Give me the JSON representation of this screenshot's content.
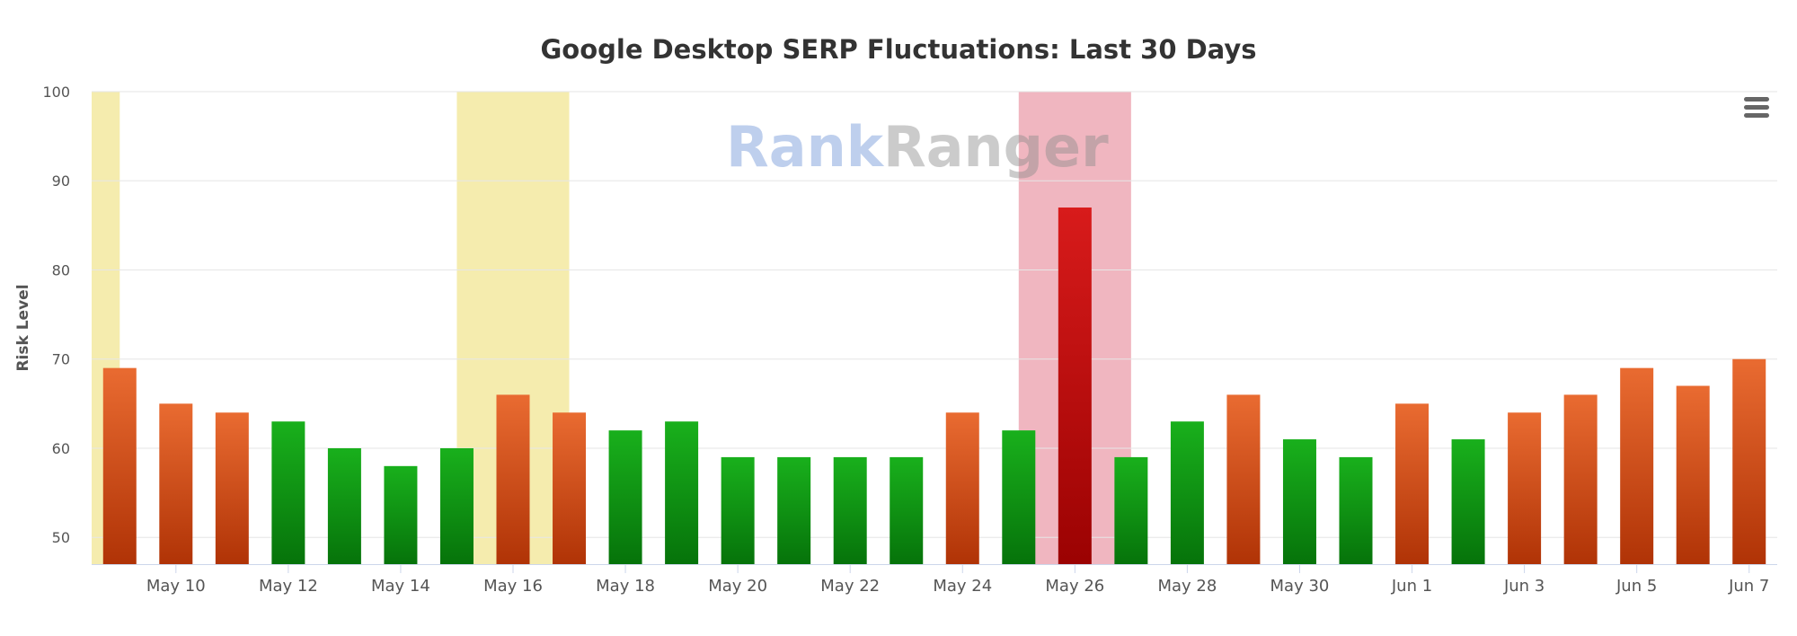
{
  "chart_data": {
    "type": "bar",
    "title": "Google Desktop SERP Fluctuations: Last 30 Days",
    "ylabel": "Risk Level",
    "xlabel": "",
    "ylim": [
      47,
      100
    ],
    "yticks": [
      50,
      60,
      70,
      80,
      90,
      100
    ],
    "grid": true,
    "categories": [
      "May 9",
      "May 10",
      "May 11",
      "May 12",
      "May 13",
      "May 14",
      "May 15",
      "May 16",
      "May 17",
      "May 18",
      "May 19",
      "May 20",
      "May 21",
      "May 22",
      "May 23",
      "May 24",
      "May 25",
      "May 26",
      "May 27",
      "May 28",
      "May 29",
      "May 30",
      "May 31",
      "Jun 1",
      "Jun 2",
      "Jun 3",
      "Jun 4",
      "Jun 5",
      "Jun 6",
      "Jun 7"
    ],
    "x_tick_labels": [
      "May 10",
      "May 12",
      "May 14",
      "May 16",
      "May 18",
      "May 20",
      "May 22",
      "May 24",
      "May 26",
      "May 28",
      "May 30",
      "Jun 1",
      "Jun 3",
      "Jun 5",
      "Jun 7"
    ],
    "values": [
      69,
      65,
      64,
      63,
      60,
      58,
      60,
      66,
      64,
      62,
      63,
      59,
      59,
      59,
      59,
      64,
      62,
      87,
      59,
      63,
      66,
      61,
      59,
      65,
      61,
      64,
      66,
      69,
      67,
      70
    ],
    "bar_levels": [
      "high",
      "high",
      "high",
      "normal",
      "normal",
      "normal",
      "normal",
      "high",
      "high",
      "normal",
      "normal",
      "normal",
      "normal",
      "normal",
      "normal",
      "high",
      "normal",
      "very-high",
      "normal",
      "normal",
      "high",
      "normal",
      "normal",
      "high",
      "normal",
      "high",
      "high",
      "high",
      "high",
      "high"
    ],
    "highlight_bands": [
      {
        "from": "May 8",
        "to": "May 9",
        "color": "#f5ecae"
      },
      {
        "from": "May 15",
        "to": "May 17",
        "color": "#f5ecae"
      },
      {
        "from": "May 25",
        "to": "May 27",
        "color": "#f0b6c0"
      }
    ],
    "colors": {
      "high_top": "#e96b31",
      "high_bottom": "#b03306",
      "normal_top": "#19b01c",
      "normal_bottom": "#06730a",
      "very_high_top": "#d81b1b",
      "very_high_bottom": "#9b0202",
      "grid": "#e6e6e6",
      "axis_text": "#555555"
    }
  },
  "watermark": {
    "part1": "Rank",
    "part2": "Ranger"
  },
  "menu": {
    "icon": "hamburger-menu-icon"
  }
}
